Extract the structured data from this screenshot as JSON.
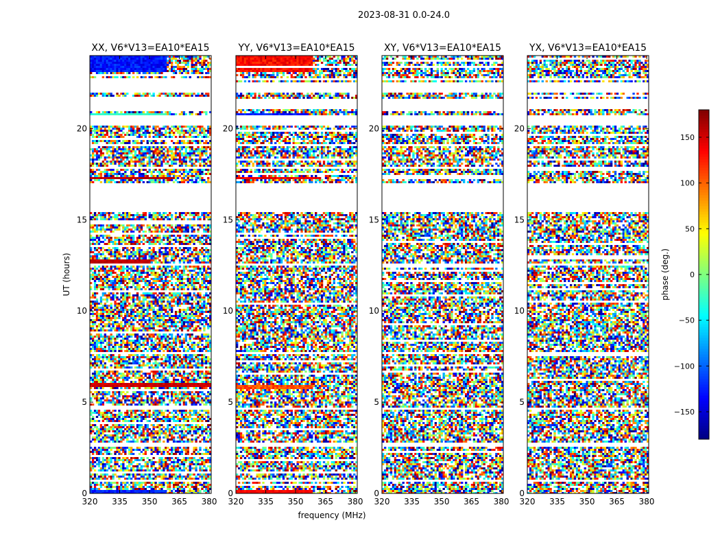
{
  "figure": {
    "suptitle": "2023-08-31 0.0-24.0"
  },
  "chart_data": {
    "type": "heatmap",
    "xlabel": "frequency (MHz)",
    "ylabel": "UT (hours)",
    "xlim": [
      320,
      381
    ],
    "ylim": [
      0,
      24
    ],
    "xticks": [
      320,
      335,
      350,
      365,
      380
    ],
    "yticks": [
      0,
      5,
      10,
      15,
      20
    ],
    "panels": [
      {
        "title": "XX, V6*V13=EA10*EA15",
        "pattern": "coherent-xx"
      },
      {
        "title": "YY, V6*V13=EA10*EA15",
        "pattern": "coherent-yy"
      },
      {
        "title": "XY, V6*V13=EA10*EA15",
        "pattern": "noise"
      },
      {
        "title": "YX, V6*V13=EA10*EA15",
        "pattern": "noise"
      }
    ],
    "gaps_hours": [
      [
        0.25,
        0.35
      ],
      [
        0.6,
        0.7
      ],
      [
        2.55,
        2.75
      ],
      [
        4.6,
        4.75
      ],
      [
        7.6,
        7.7
      ],
      [
        12.45,
        12.55
      ],
      [
        15.4,
        17.0
      ],
      [
        17.75,
        17.85
      ],
      [
        19.0,
        19.1
      ],
      [
        20.2,
        20.75
      ],
      [
        21.1,
        21.6
      ],
      [
        22.0,
        22.5
      ],
      [
        22.65,
        22.75
      ]
    ],
    "colorbar": {
      "label": "phase (deg.)",
      "range": [
        -180,
        180
      ],
      "ticks": [
        -150,
        -100,
        -50,
        0,
        50,
        100,
        150
      ],
      "colormap": [
        "#00007f",
        "#0000ff",
        "#007fff",
        "#00ffff",
        "#7fff7f",
        "#ffff00",
        "#ff7f00",
        "#ff0000",
        "#7f0000"
      ]
    }
  }
}
